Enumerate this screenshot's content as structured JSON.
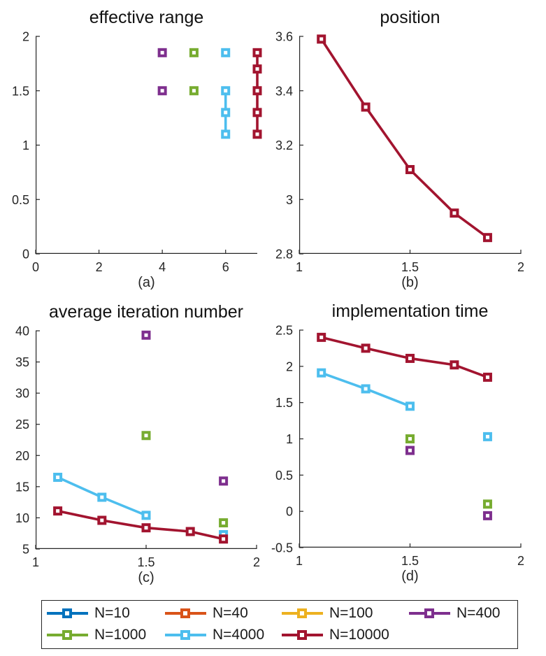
{
  "colors": {
    "axis": "#262626",
    "title": "#111111",
    "text": "#1a1a1a",
    "background": "#ffffff"
  },
  "chart_data": [
    {
      "type": "line",
      "title": "effective range",
      "sublabel": "(a)",
      "xlim": [
        0,
        7
      ],
      "ylim": [
        0,
        2
      ],
      "xticks": [
        0,
        2,
        4,
        6
      ],
      "xtick_labels": [
        "0",
        "2",
        "4",
        "6"
      ],
      "yticks": [
        0,
        0.5,
        1,
        1.5,
        2
      ],
      "ytick_labels": [
        "0",
        "0.5",
        "1",
        "1.5",
        "2"
      ],
      "grid": false,
      "series": [
        {
          "name": "N=400",
          "color": "#7E2F8E",
          "segments": [
            [
              [
                4,
                1.85
              ]
            ],
            [
              [
                4,
                1.5
              ]
            ]
          ]
        },
        {
          "name": "N=1000",
          "color": "#77AC30",
          "segments": [
            [
              [
                5,
                1.85
              ]
            ],
            [
              [
                5,
                1.5
              ]
            ]
          ]
        },
        {
          "name": "N=4000",
          "color": "#4DBEEE",
          "segments": [
            [
              [
                6,
                1.85
              ]
            ],
            [
              [
                6,
                1.5
              ],
              [
                6,
                1.3
              ],
              [
                6,
                1.1
              ]
            ]
          ]
        },
        {
          "name": "N=10000",
          "color": "#A2142F",
          "segments": [
            [
              [
                7,
                1.85
              ],
              [
                7,
                1.7
              ],
              [
                7,
                1.5
              ],
              [
                7,
                1.3
              ],
              [
                7,
                1.1
              ]
            ]
          ]
        }
      ]
    },
    {
      "type": "line",
      "title": "position",
      "sublabel": "(b)",
      "xlim": [
        1,
        2
      ],
      "ylim": [
        2.8,
        3.6
      ],
      "xticks": [
        1,
        1.5,
        2
      ],
      "xtick_labels": [
        "1",
        "1.5",
        "2"
      ],
      "yticks": [
        2.8,
        3.0,
        3.2,
        3.4,
        3.6
      ],
      "ytick_labels": [
        "2.8",
        "3",
        "3.2",
        "3.4",
        "3.6"
      ],
      "grid": false,
      "series": [
        {
          "name": "N=10000",
          "color": "#A2142F",
          "segments": [
            [
              [
                1.1,
                3.59
              ],
              [
                1.3,
                3.34
              ],
              [
                1.5,
                3.11
              ],
              [
                1.7,
                2.95
              ],
              [
                1.85,
                2.86
              ]
            ]
          ]
        }
      ]
    },
    {
      "type": "line",
      "title": "average iteration number",
      "sublabel": "(c)",
      "xlim": [
        1,
        2
      ],
      "ylim": [
        5,
        40
      ],
      "xticks": [
        1,
        1.5,
        2
      ],
      "xtick_labels": [
        "1",
        "1.5",
        "2"
      ],
      "yticks": [
        5,
        10,
        15,
        20,
        25,
        30,
        35,
        40
      ],
      "ytick_labels": [
        "5",
        "10",
        "15",
        "20",
        "25",
        "30",
        "35",
        "40"
      ],
      "grid": false,
      "series": [
        {
          "name": "N=400",
          "color": "#7E2F8E",
          "segments": [
            [
              [
                1.5,
                39.3
              ]
            ],
            [
              [
                1.85,
                15.9
              ]
            ]
          ]
        },
        {
          "name": "N=1000",
          "color": "#77AC30",
          "segments": [
            [
              [
                1.5,
                23.2
              ]
            ],
            [
              [
                1.85,
                9.2
              ]
            ]
          ]
        },
        {
          "name": "N=4000",
          "color": "#4DBEEE",
          "segments": [
            [
              [
                1.1,
                16.5
              ],
              [
                1.3,
                13.3
              ],
              [
                1.5,
                10.4
              ]
            ],
            [
              [
                1.85,
                7.3
              ]
            ]
          ]
        },
        {
          "name": "N=10000",
          "color": "#A2142F",
          "segments": [
            [
              [
                1.1,
                11.1
              ],
              [
                1.3,
                9.6
              ],
              [
                1.5,
                8.4
              ],
              [
                1.7,
                7.8
              ],
              [
                1.85,
                6.6
              ]
            ]
          ]
        }
      ]
    },
    {
      "type": "line",
      "title": "implementation time",
      "sublabel": "(d)",
      "xlim": [
        1,
        2
      ],
      "ylim": [
        -0.5,
        2.5
      ],
      "xticks": [
        1,
        1.5,
        2
      ],
      "xtick_labels": [
        "1",
        "1.5",
        "2"
      ],
      "yticks": [
        -0.5,
        0,
        0.5,
        1,
        1.5,
        2,
        2.5
      ],
      "ytick_labels": [
        "-0.5",
        "0",
        "0.5",
        "1",
        "1.5",
        "2",
        "2.5"
      ],
      "grid": false,
      "series": [
        {
          "name": "N=400",
          "color": "#7E2F8E",
          "segments": [
            [
              [
                1.5,
                0.84
              ]
            ],
            [
              [
                1.85,
                -0.06
              ]
            ]
          ]
        },
        {
          "name": "N=1000",
          "color": "#77AC30",
          "segments": [
            [
              [
                1.5,
                1.0
              ]
            ],
            [
              [
                1.85,
                0.1
              ]
            ]
          ]
        },
        {
          "name": "N=4000",
          "color": "#4DBEEE",
          "segments": [
            [
              [
                1.1,
                1.91
              ],
              [
                1.3,
                1.69
              ],
              [
                1.5,
                1.45
              ]
            ],
            [
              [
                1.85,
                1.03
              ]
            ]
          ]
        },
        {
          "name": "N=10000",
          "color": "#A2142F",
          "segments": [
            [
              [
                1.1,
                2.4
              ],
              [
                1.3,
                2.25
              ],
              [
                1.5,
                2.11
              ],
              [
                1.7,
                2.02
              ],
              [
                1.85,
                1.85
              ]
            ]
          ]
        }
      ]
    }
  ],
  "legend": {
    "position": "bottom",
    "entries": [
      {
        "label": "N=10",
        "color": "#0072BD"
      },
      {
        "label": "N=40",
        "color": "#D95319"
      },
      {
        "label": "N=100",
        "color": "#EDB120"
      },
      {
        "label": "N=400",
        "color": "#7E2F8E"
      },
      {
        "label": "N=1000",
        "color": "#77AC30"
      },
      {
        "label": "N=4000",
        "color": "#4DBEEE"
      },
      {
        "label": "N=10000",
        "color": "#A2142F"
      }
    ]
  }
}
